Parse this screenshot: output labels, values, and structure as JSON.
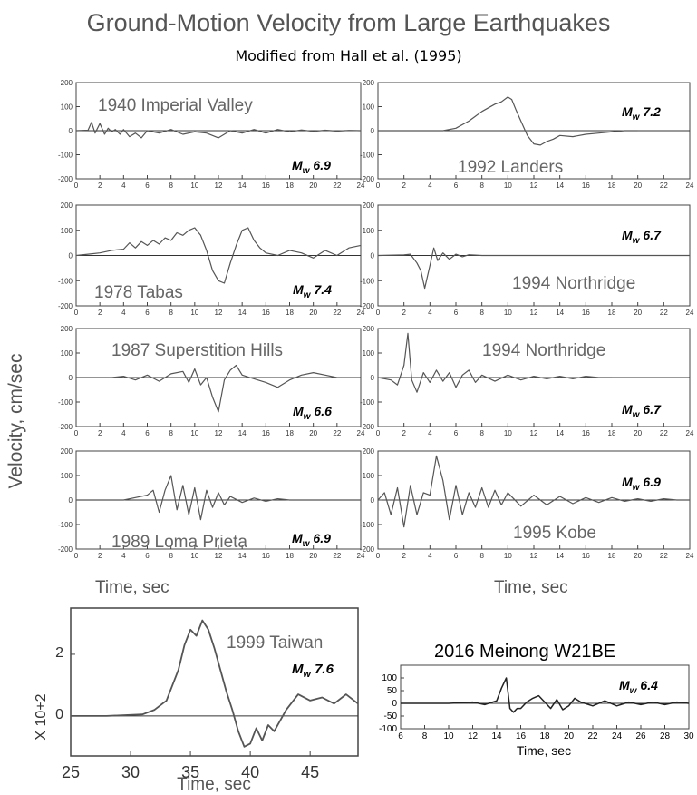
{
  "title": "Ground-Motion Velocity from Large Earthquakes",
  "subtitle": "Modified from Hall et al. (1995)",
  "ylabel": "Velocity,  cm/sec",
  "xlabel_left": "Time, sec",
  "xlabel_right": "Time, sec",
  "colors": {
    "trace": "#555555",
    "meinong_trace": "#222222",
    "text_gray": "#666666"
  },
  "chart_data": [
    {
      "type": "line",
      "event": "1940 Imperial Valley",
      "magnitude": "6.9",
      "x": [
        0,
        1,
        1.3,
        1.6,
        2,
        2.4,
        2.7,
        3,
        3.3,
        3.7,
        4,
        4.5,
        5,
        5.5,
        6,
        7,
        8,
        9,
        10,
        11,
        12,
        13,
        14,
        15,
        16,
        17,
        18,
        19,
        20,
        21,
        22,
        23,
        24
      ],
      "y": [
        0,
        2,
        35,
        -10,
        30,
        -15,
        10,
        -5,
        5,
        -15,
        5,
        -25,
        -10,
        -30,
        0,
        -10,
        5,
        -15,
        -5,
        -10,
        -30,
        0,
        -10,
        5,
        -10,
        5,
        -5,
        3,
        -3,
        2,
        -2,
        1,
        0
      ],
      "xlim": [
        0,
        24
      ],
      "ylim": [
        -200,
        200
      ],
      "xticks": [
        0,
        2,
        4,
        6,
        8,
        10,
        12,
        14,
        16,
        18,
        20,
        22,
        24
      ],
      "yticks": [
        200,
        100,
        0,
        -100,
        -200
      ]
    },
    {
      "type": "line",
      "event": "1992 Landers",
      "magnitude": "7.2",
      "x": [
        0,
        5,
        6,
        7,
        7.5,
        8,
        8.5,
        9,
        9.5,
        10,
        10.3,
        10.6,
        11,
        11.5,
        12,
        12.5,
        13,
        13.5,
        14,
        15,
        16,
        17,
        18,
        19,
        20
      ],
      "y": [
        0,
        0,
        10,
        40,
        60,
        80,
        95,
        110,
        120,
        140,
        130,
        90,
        40,
        -20,
        -55,
        -60,
        -45,
        -35,
        -20,
        -25,
        -15,
        -10,
        -5,
        0,
        0
      ],
      "xlim": [
        0,
        24
      ],
      "ylim": [
        -200,
        200
      ],
      "xticks": [
        0,
        2,
        4,
        6,
        8,
        10,
        12,
        14,
        16,
        18,
        20,
        22,
        24
      ],
      "yticks": [
        200,
        100,
        0,
        -100,
        -200
      ]
    },
    {
      "type": "line",
      "event": "1978 Tabas",
      "magnitude": "7.4",
      "x": [
        0,
        1,
        2,
        3,
        4,
        4.5,
        5,
        5.5,
        6,
        6.5,
        7,
        7.5,
        8,
        8.5,
        9,
        9.5,
        10,
        10.5,
        11,
        11.5,
        12,
        12.5,
        13,
        13.5,
        14,
        14.5,
        15,
        15.5,
        16,
        17,
        18,
        19,
        20,
        21,
        22,
        23,
        24
      ],
      "y": [
        0,
        5,
        10,
        20,
        25,
        50,
        30,
        55,
        40,
        60,
        45,
        70,
        60,
        90,
        80,
        100,
        110,
        80,
        20,
        -60,
        -100,
        -110,
        -30,
        40,
        100,
        110,
        60,
        30,
        10,
        0,
        20,
        10,
        -10,
        20,
        0,
        30,
        40
      ],
      "xlim": [
        0,
        24
      ],
      "ylim": [
        -200,
        200
      ],
      "xticks": [
        0,
        2,
        4,
        6,
        8,
        10,
        12,
        14,
        16,
        18,
        20,
        22,
        24
      ],
      "yticks": [
        200,
        100,
        0,
        -100,
        -200
      ]
    },
    {
      "type": "line",
      "event": "1994 Northridge",
      "magnitude": "6.7",
      "x": [
        0,
        2,
        2.5,
        3,
        3.3,
        3.6,
        4,
        4.3,
        4.6,
        5,
        5.5,
        6,
        6.5,
        7,
        8,
        9,
        10,
        12,
        14,
        16,
        18,
        20,
        22,
        24
      ],
      "y": [
        0,
        2,
        5,
        -30,
        -60,
        -130,
        -40,
        30,
        -20,
        10,
        -15,
        5,
        -5,
        3,
        0,
        0,
        0,
        0,
        0,
        0,
        0,
        0,
        0,
        0
      ],
      "xlim": [
        0,
        24
      ],
      "ylim": [
        -200,
        200
      ],
      "xticks": [
        0,
        2,
        4,
        6,
        8,
        10,
        12,
        14,
        16,
        18,
        20,
        22,
        24
      ],
      "yticks": [
        200,
        100,
        0,
        -100,
        -200
      ]
    },
    {
      "type": "line",
      "event": "1987 Superstition Hills",
      "magnitude": "6.6",
      "x": [
        0,
        3,
        4,
        5,
        6,
        7,
        8,
        9,
        9.5,
        10,
        10.5,
        11,
        11.5,
        12,
        12.5,
        13,
        13.5,
        14,
        15,
        16,
        17,
        18,
        19,
        20,
        21,
        22
      ],
      "y": [
        0,
        0,
        5,
        -10,
        10,
        -15,
        15,
        25,
        -20,
        35,
        -30,
        0,
        -80,
        -140,
        -10,
        30,
        50,
        10,
        -5,
        -20,
        -40,
        -10,
        10,
        20,
        10,
        0
      ],
      "xlim": [
        0,
        24
      ],
      "ylim": [
        -200,
        200
      ],
      "xticks": [
        0,
        2,
        4,
        6,
        8,
        10,
        12,
        14,
        16,
        18,
        20,
        22,
        24
      ],
      "yticks": [
        200,
        100,
        0,
        -100,
        -200
      ]
    },
    {
      "type": "line",
      "event": "1994 Northridge",
      "magnitude": "6.7",
      "x": [
        0,
        1,
        1.5,
        2,
        2.3,
        2.6,
        3,
        3.5,
        4,
        4.5,
        5,
        5.5,
        6,
        6.5,
        7,
        7.5,
        8,
        9,
        10,
        11,
        12,
        13,
        14,
        15,
        16,
        17,
        18
      ],
      "y": [
        0,
        -10,
        -30,
        50,
        180,
        -10,
        -60,
        20,
        -20,
        30,
        -15,
        20,
        -40,
        10,
        30,
        -20,
        10,
        -15,
        10,
        -10,
        5,
        -5,
        5,
        -5,
        5,
        0,
        0
      ],
      "xlim": [
        0,
        24
      ],
      "ylim": [
        -200,
        200
      ],
      "xticks": [
        0,
        2,
        4,
        6,
        8,
        10,
        12,
        14,
        16,
        18,
        20,
        22,
        24
      ],
      "yticks": [
        200,
        100,
        0,
        -100,
        -200
      ]
    },
    {
      "type": "line",
      "event": "1989 Loma Prieta",
      "magnitude": "6.9",
      "x": [
        0,
        4,
        5,
        6,
        6.5,
        7,
        7.5,
        8,
        8.5,
        9,
        9.5,
        10,
        10.5,
        11,
        11.5,
        12,
        12.5,
        13,
        14,
        15,
        16,
        17,
        18,
        20,
        22,
        24
      ],
      "y": [
        0,
        0,
        10,
        20,
        40,
        -50,
        40,
        100,
        -40,
        60,
        -60,
        50,
        -80,
        40,
        -30,
        30,
        -20,
        15,
        -10,
        8,
        -5,
        5,
        0,
        0,
        0,
        0
      ],
      "xlim": [
        0,
        24
      ],
      "ylim": [
        -200,
        200
      ],
      "xticks": [
        0,
        2,
        4,
        6,
        8,
        10,
        12,
        14,
        16,
        18,
        20,
        22,
        24
      ],
      "yticks": [
        200,
        100,
        0,
        -100,
        -200
      ]
    },
    {
      "type": "line",
      "event": "1995 Kobe",
      "magnitude": "6.9",
      "x": [
        0,
        0.5,
        1,
        1.5,
        2,
        2.5,
        3,
        3.5,
        4,
        4.5,
        5,
        5.5,
        6,
        6.5,
        7,
        7.5,
        8,
        8.5,
        9,
        9.5,
        10,
        11,
        12,
        13,
        14,
        15,
        16,
        17,
        18,
        19,
        20,
        21,
        22,
        23,
        24
      ],
      "y": [
        0,
        30,
        -60,
        50,
        -110,
        60,
        -60,
        30,
        20,
        180,
        80,
        -80,
        60,
        -60,
        30,
        -30,
        50,
        -30,
        40,
        -20,
        30,
        -25,
        20,
        -20,
        15,
        -15,
        10,
        -10,
        10,
        -5,
        5,
        -5,
        5,
        0,
        0
      ],
      "xlim": [
        0,
        24
      ],
      "ylim": [
        -200,
        200
      ],
      "xticks": [
        0,
        2,
        4,
        6,
        8,
        10,
        12,
        14,
        16,
        18,
        20,
        22,
        24
      ],
      "yticks": [
        200,
        100,
        0,
        -100,
        -200
      ]
    },
    {
      "type": "line",
      "event": "1999 Taiwan",
      "magnitude": "7.6",
      "y_tick_prefix": "X 10+2",
      "x": [
        25,
        28,
        31,
        32,
        33,
        34,
        34.5,
        35,
        35.5,
        36,
        36.5,
        37,
        37.5,
        38,
        38.5,
        39,
        39.5,
        40,
        40.5,
        41,
        41.5,
        42,
        43,
        44,
        45,
        46,
        47,
        48,
        49
      ],
      "y": [
        0,
        0,
        0.05,
        0.2,
        0.5,
        1.5,
        2.3,
        2.8,
        2.6,
        3.1,
        2.8,
        2.2,
        1.5,
        0.8,
        0.2,
        -0.5,
        -1.0,
        -0.9,
        -0.4,
        -0.8,
        -0.3,
        -0.5,
        0.2,
        0.7,
        0.5,
        0.6,
        0.4,
        0.7,
        0.4
      ],
      "xlim": [
        25,
        49
      ],
      "ylim": [
        -1.3,
        3.5
      ],
      "xticks": [
        25,
        30,
        35,
        40,
        45
      ],
      "yticks": [
        2,
        0
      ]
    },
    {
      "type": "line",
      "event": "2016 Meinong W21BE",
      "magnitude": "6.4",
      "xlabel": "Time, sec",
      "x": [
        6,
        8,
        10,
        11,
        12,
        13,
        14,
        14.4,
        14.8,
        15.1,
        15.4,
        15.7,
        16,
        16.5,
        17,
        17.5,
        18,
        18.5,
        19,
        19.5,
        20,
        20.5,
        21,
        22,
        23,
        24,
        25,
        26,
        27,
        28,
        29,
        30
      ],
      "y": [
        0,
        0,
        0,
        2,
        5,
        -5,
        10,
        60,
        100,
        -20,
        -35,
        -20,
        -20,
        5,
        20,
        30,
        5,
        -20,
        15,
        -25,
        -10,
        20,
        5,
        -10,
        10,
        -10,
        5,
        -5,
        5,
        -5,
        5,
        0
      ],
      "xlim": [
        6,
        30
      ],
      "ylim": [
        -100,
        150
      ],
      "xticks": [
        6,
        8,
        10,
        12,
        14,
        16,
        18,
        20,
        22,
        24,
        26,
        28,
        30
      ],
      "yticks": [
        100,
        50,
        0,
        -50,
        -100
      ]
    }
  ]
}
